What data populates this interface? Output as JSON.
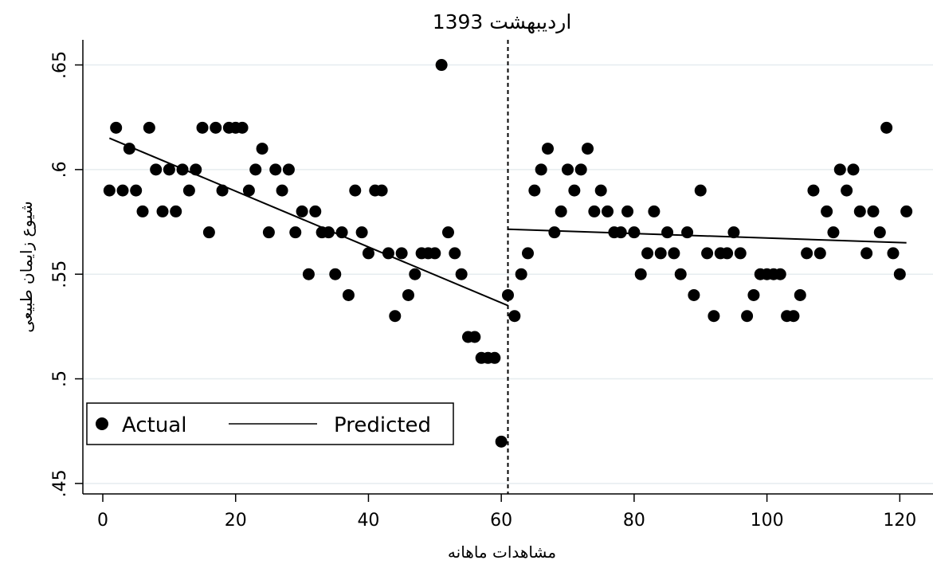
{
  "chart_data": {
    "type": "scatter",
    "title": "اردیبهشت 1393",
    "xlabel": "مشاهدات ماهانه",
    "ylabel": "شیوع زایمان طبیعی",
    "xlim": [
      -3,
      125
    ],
    "ylim": [
      0.445,
      0.662
    ],
    "x_ticks": [
      0,
      20,
      40,
      60,
      80,
      100,
      120
    ],
    "x_tick_labels": [
      "0",
      "20",
      "40",
      "60",
      "80",
      "100",
      "120"
    ],
    "y_ticks": [
      0.45,
      0.5,
      0.55,
      0.6,
      0.65
    ],
    "y_tick_labels": [
      ".45",
      ".5",
      ".55",
      ".6",
      ".65"
    ],
    "grid": "horizontal",
    "legend_position": "bottom-left",
    "intervention_line_x": 61,
    "series": [
      {
        "name": "Actual",
        "kind": "points",
        "x": [
          1,
          2,
          3,
          4,
          5,
          6,
          7,
          8,
          9,
          10,
          11,
          12,
          13,
          14,
          15,
          16,
          17,
          18,
          19,
          20,
          21,
          22,
          23,
          24,
          25,
          26,
          27,
          28,
          29,
          30,
          31,
          32,
          33,
          34,
          35,
          36,
          37,
          38,
          39,
          40,
          41,
          42,
          43,
          44,
          45,
          46,
          47,
          48,
          49,
          50,
          51,
          52,
          53,
          54,
          55,
          56,
          57,
          58,
          59,
          60,
          61,
          62,
          63,
          64,
          65,
          66,
          67,
          68,
          69,
          70,
          71,
          72,
          73,
          74,
          75,
          76,
          77,
          78,
          79,
          80,
          81,
          82,
          83,
          84,
          85,
          86,
          87,
          88,
          89,
          90,
          91,
          92,
          93,
          94,
          95,
          96,
          97,
          98,
          99,
          100,
          101,
          102,
          103,
          104,
          105,
          106,
          107,
          108,
          109,
          110,
          111,
          112,
          113,
          114,
          115,
          116,
          117,
          118,
          119,
          120,
          121
        ],
        "y": [
          0.59,
          0.62,
          0.59,
          0.61,
          0.59,
          0.58,
          0.62,
          0.6,
          0.58,
          0.6,
          0.58,
          0.6,
          0.59,
          0.6,
          0.62,
          0.57,
          0.62,
          0.59,
          0.62,
          0.62,
          0.62,
          0.59,
          0.6,
          0.61,
          0.57,
          0.6,
          0.59,
          0.6,
          0.57,
          0.58,
          0.55,
          0.58,
          0.57,
          0.57,
          0.55,
          0.57,
          0.54,
          0.59,
          0.57,
          0.56,
          0.59,
          0.59,
          0.56,
          0.53,
          0.56,
          0.54,
          0.55,
          0.56,
          0.56,
          0.56,
          0.65,
          0.57,
          0.56,
          0.55,
          0.52,
          0.52,
          0.51,
          0.51,
          0.51,
          0.47,
          0.54,
          0.53,
          0.55,
          0.56,
          0.59,
          0.6,
          0.61,
          0.57,
          0.58,
          0.6,
          0.59,
          0.6,
          0.61,
          0.58,
          0.59,
          0.58,
          0.57,
          0.57,
          0.58,
          0.57,
          0.55,
          0.56,
          0.58,
          0.56,
          0.57,
          0.56,
          0.55,
          0.57,
          0.54,
          0.59,
          0.56,
          0.53,
          0.56,
          0.56,
          0.57,
          0.56,
          0.53,
          0.54,
          0.55,
          0.55,
          0.55,
          0.55,
          0.53,
          0.53,
          0.54,
          0.56,
          0.59,
          0.56,
          0.58,
          0.57,
          0.6,
          0.59,
          0.6,
          0.58,
          0.56,
          0.58,
          0.57,
          0.62,
          0.56,
          0.55,
          0.58
        ]
      },
      {
        "name": "Predicted",
        "kind": "segments",
        "segments": [
          {
            "x": [
              1,
              61
            ],
            "y": [
              0.615,
              0.535
            ]
          },
          {
            "x": [
              61,
              121
            ],
            "y": [
              0.5715,
              0.565
            ]
          }
        ]
      }
    ],
    "legend": [
      "Actual",
      "Predicted"
    ]
  }
}
